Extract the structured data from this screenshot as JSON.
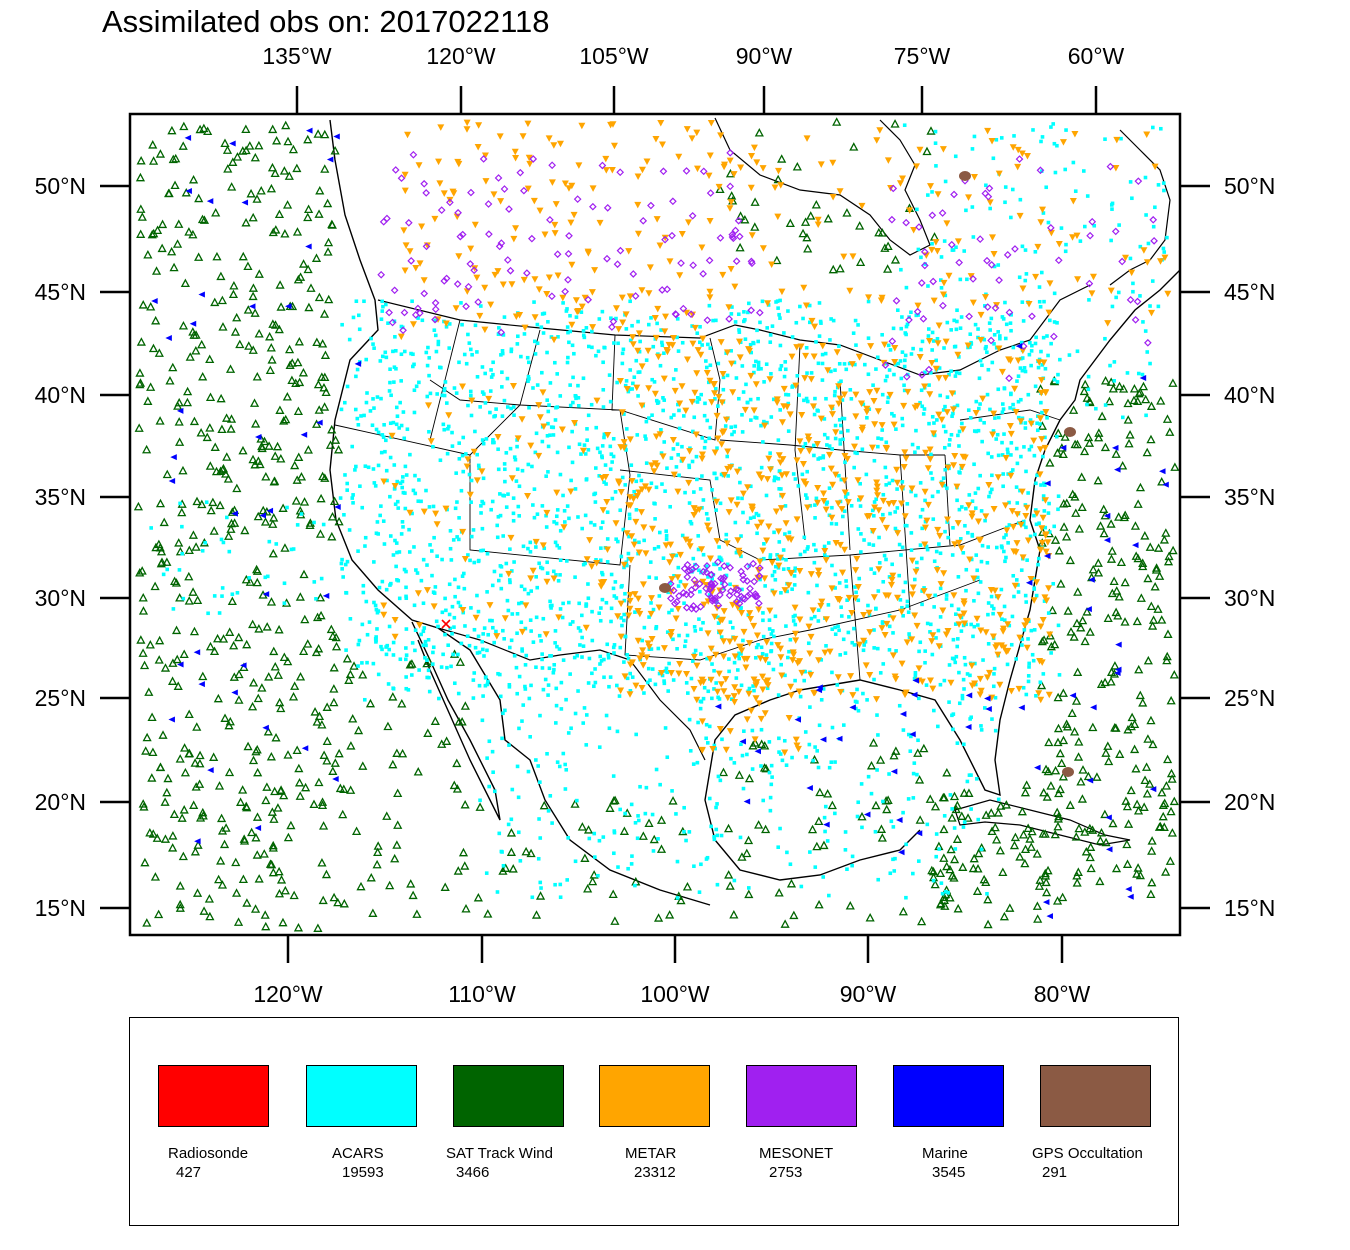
{
  "title": "Assimilated obs on: 2017022118",
  "axes": {
    "top_ticks": [
      "135°W",
      "120°W",
      "105°W",
      "90°W",
      "75°W",
      "60°W"
    ],
    "bottom_ticks": [
      "120°W",
      "110°W",
      "100°W",
      "90°W",
      "80°W"
    ],
    "left_ticks": [
      "50°N",
      "45°N",
      "40°N",
      "35°N",
      "30°N",
      "25°N",
      "20°N",
      "15°N"
    ],
    "right_ticks": [
      "50°N",
      "45°N",
      "40°N",
      "35°N",
      "30°N",
      "25°N",
      "20°N",
      "15°N"
    ]
  },
  "map": {
    "projection": "lambert conformal",
    "lat_range": [
      14,
      53
    ],
    "lon_range": [
      -128,
      -74
    ],
    "coastline_color": "#000000",
    "frame_color": "#000000"
  },
  "legend": [
    {
      "label": "Radiosonde",
      "count": "427",
      "color": "#ff0000",
      "marker": "x-icon"
    },
    {
      "label": "ACARS",
      "count": "19593",
      "color": "#00ffff",
      "marker": "square-dot-icon"
    },
    {
      "label": "SAT Track Wind",
      "count": "3466",
      "color": "#006400",
      "marker": "triangle-up-icon"
    },
    {
      "label": "METAR",
      "count": "23312",
      "color": "#ffa500",
      "marker": "triangle-down-icon"
    },
    {
      "label": "MESONET",
      "count": "2753",
      "color": "#a020f0",
      "marker": "diamond-icon"
    },
    {
      "label": "Marine",
      "count": "3545",
      "color": "#0000ff",
      "marker": "triangle-left-icon"
    },
    {
      "label": "GPS Occultation",
      "count": "291",
      "color": "#8b5a44",
      "marker": "blob-icon"
    }
  ]
}
